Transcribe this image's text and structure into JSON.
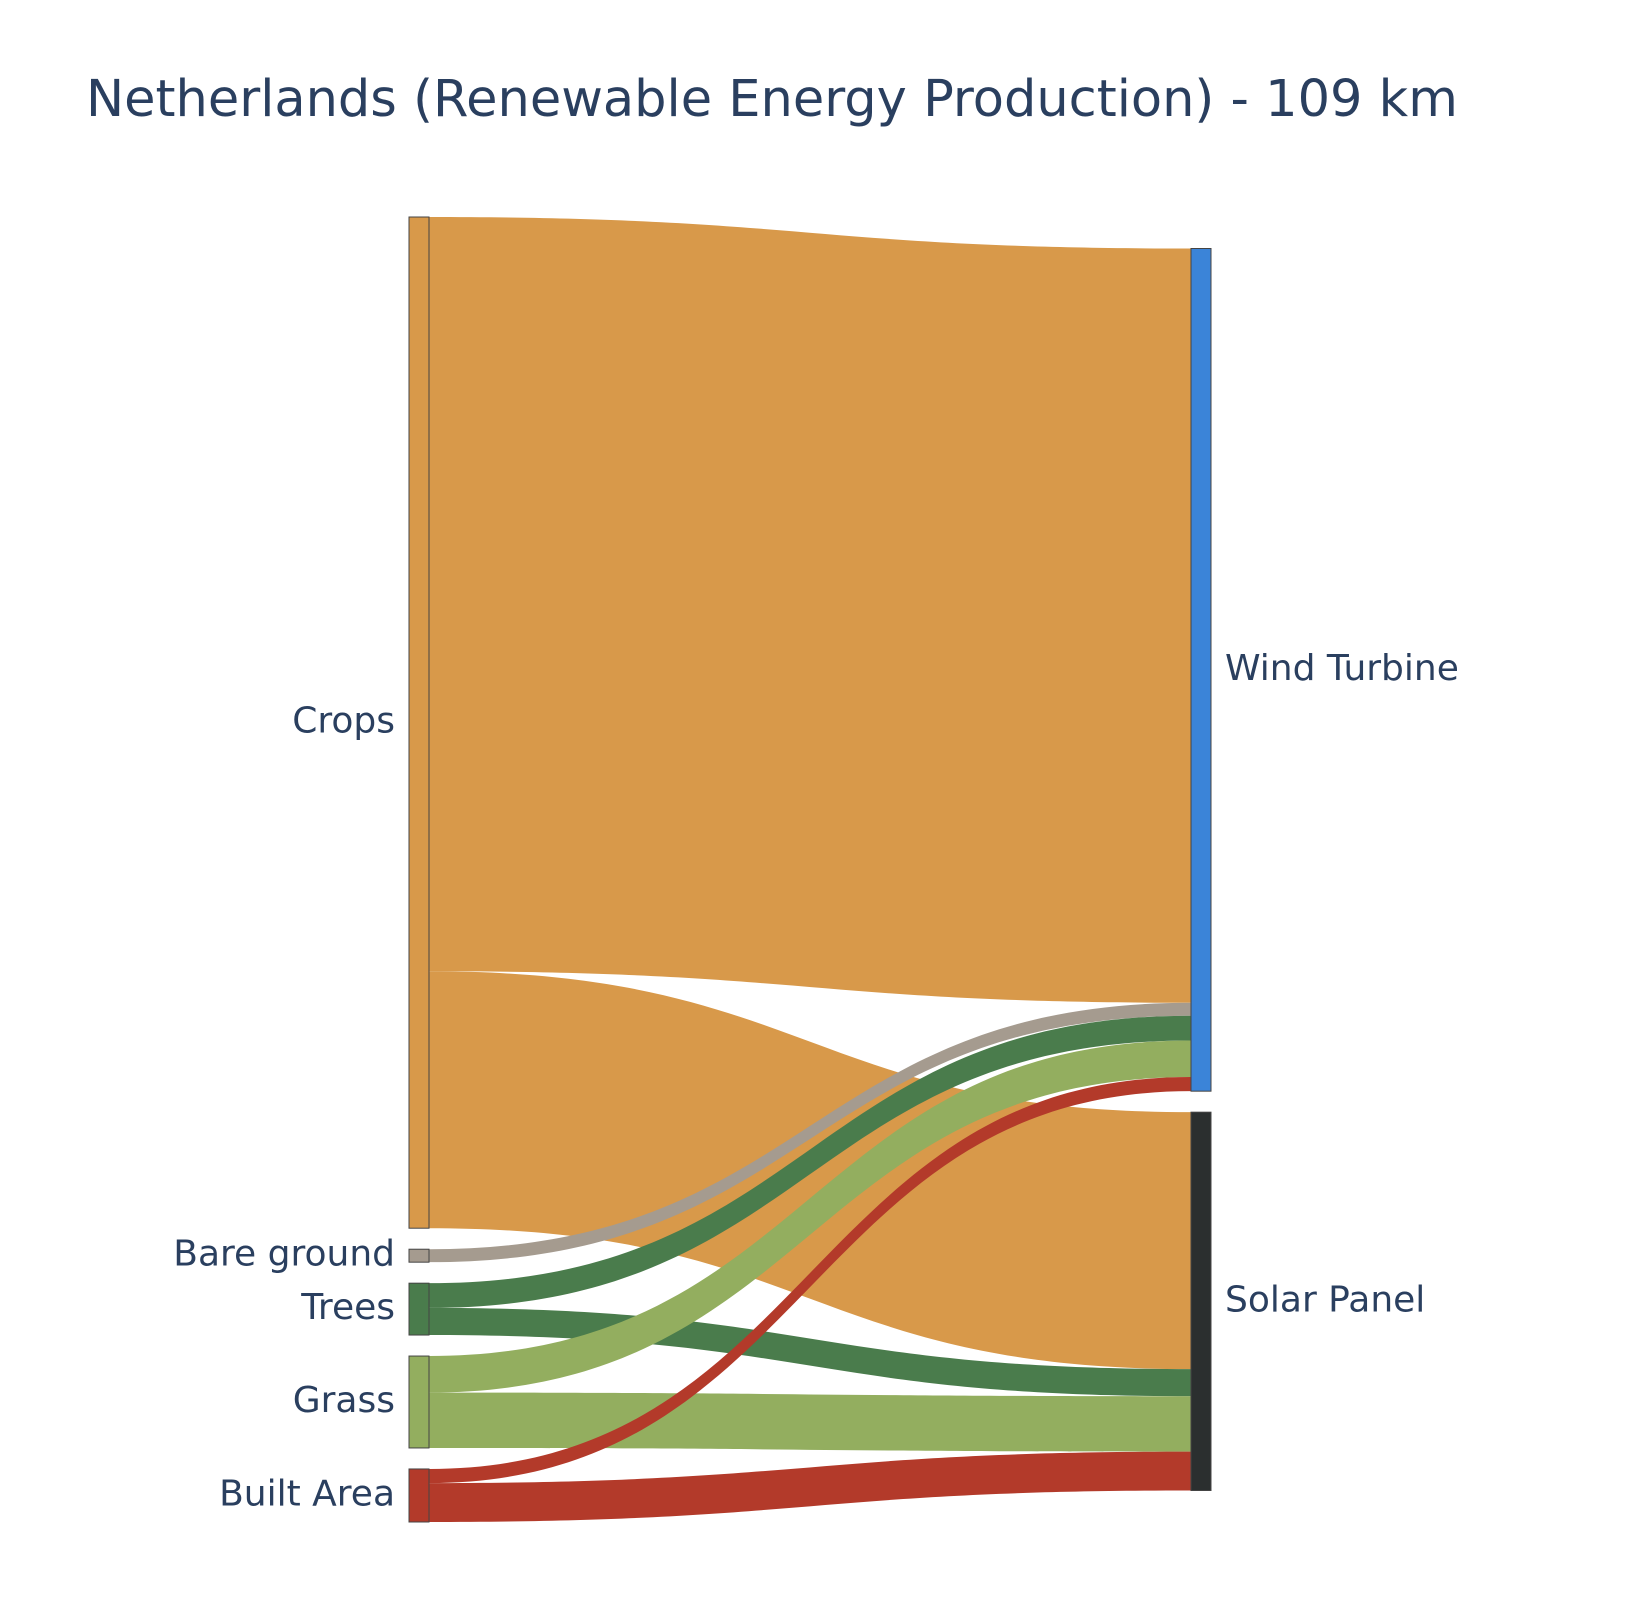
{
  "chart_data": {
    "type": "sankey",
    "title": "Netherlands (Renewable Energy Production) - 109 km",
    "nodes": [
      {
        "id": "crops",
        "label": "Crops",
        "color": "#d8994a",
        "column": 0
      },
      {
        "id": "bare",
        "label": "Bare ground",
        "color": "#a59b8f",
        "column": 0
      },
      {
        "id": "trees",
        "label": "Trees",
        "color": "#4a7c4c",
        "column": 0
      },
      {
        "id": "grass",
        "label": "Grass",
        "color": "#93ae5f",
        "column": 0
      },
      {
        "id": "built",
        "label": "Built Area",
        "color": "#b33a2a",
        "column": 0
      },
      {
        "id": "wind",
        "label": "Wind Turbine",
        "color": "#3b84d8",
        "column": 1
      },
      {
        "id": "solar",
        "label": "Solar Panel",
        "color": "#2b2f2f",
        "column": 1
      }
    ],
    "links": [
      {
        "source": "crops",
        "target": "wind",
        "value": 64.0
      },
      {
        "source": "crops",
        "target": "solar",
        "value": 21.8
      },
      {
        "source": "bare",
        "target": "wind",
        "value": 1.1
      },
      {
        "source": "trees",
        "target": "wind",
        "value": 2.1
      },
      {
        "source": "trees",
        "target": "solar",
        "value": 2.3
      },
      {
        "source": "grass",
        "target": "wind",
        "value": 3.1
      },
      {
        "source": "grass",
        "target": "solar",
        "value": 4.7
      },
      {
        "source": "built",
        "target": "wind",
        "value": 1.2
      },
      {
        "source": "built",
        "target": "solar",
        "value": 3.3
      }
    ]
  }
}
